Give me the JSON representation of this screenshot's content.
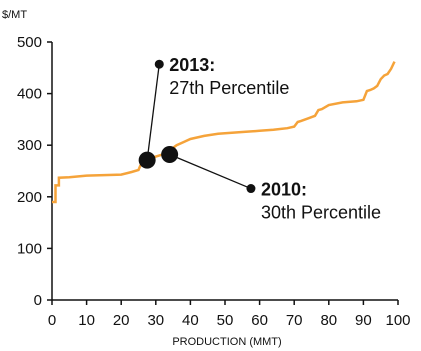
{
  "chart_data": {
    "type": "line",
    "title": "",
    "ylabel": "$/MT",
    "xlabel": "PRODUCTION (MMT)",
    "xlim": [
      0,
      100
    ],
    "ylim": [
      0,
      500
    ],
    "x_ticks": [
      "0",
      "10",
      "20",
      "30",
      "40",
      "50",
      "60",
      "70",
      "80",
      "90",
      "100"
    ],
    "y_ticks": [
      "0",
      "100",
      "200",
      "300",
      "400",
      "500"
    ],
    "grid": false,
    "series": [
      {
        "color": "#F5A33A",
        "x": [
          0,
          1,
          1,
          2,
          2,
          5,
          10,
          15,
          20,
          23,
          25,
          25.5,
          26,
          27,
          28,
          30,
          32,
          34,
          36,
          38,
          40,
          44,
          48,
          52,
          56,
          60,
          64,
          68,
          70,
          71,
          72,
          74,
          76,
          77,
          78,
          80,
          84,
          88,
          90,
          91,
          92,
          93,
          94,
          95,
          96,
          97,
          98,
          99
        ],
        "y": [
          190,
          190,
          222,
          222,
          237,
          238,
          241,
          242,
          243,
          248,
          252,
          260,
          265,
          270,
          272,
          278,
          282,
          290,
          300,
          306,
          312,
          318,
          322,
          324,
          326,
          328,
          330,
          333,
          336,
          345,
          347,
          352,
          357,
          368,
          370,
          378,
          383,
          385,
          388,
          405,
          407,
          410,
          415,
          428,
          435,
          438,
          448,
          462
        ]
      }
    ],
    "markers": [
      {
        "x": 27.5,
        "y": 271
      },
      {
        "x": 34,
        "y": 282
      }
    ],
    "annotations": [
      {
        "year": "2013:",
        "text": "27th Percentile",
        "from": 0,
        "anchor_x": 31,
        "anchor_y": 457
      },
      {
        "year": "2010:",
        "text": "30th Percentile",
        "from": 1,
        "anchor_x": 57.5,
        "anchor_y": 216
      }
    ]
  }
}
